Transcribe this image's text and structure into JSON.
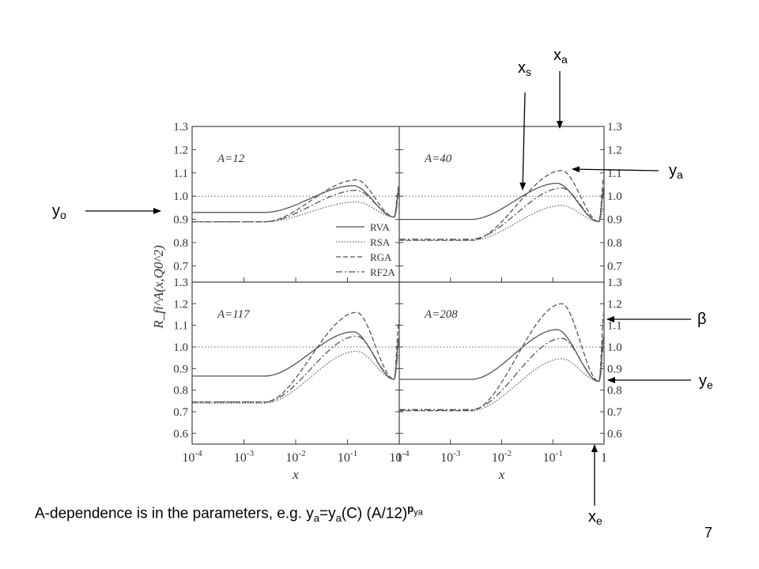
{
  "chart_data": {
    "type": "line",
    "xlabel": "x",
    "ylabel": "R_fi^A(x,Q0^2)",
    "x_log": true,
    "xlim": [
      0.0001,
      1
    ],
    "x_ticks": [
      "10-4",
      "10-3",
      "10-2",
      "10-1",
      "1"
    ],
    "y_ticks_top": [
      "0.7",
      "0.8",
      "0.9",
      "1.0",
      "1.1",
      "1.2",
      "1.3"
    ],
    "y_ticks_bottom": [
      "0.6",
      "0.7",
      "0.8",
      "0.9",
      "1.0",
      "1.1",
      "1.2",
      "1.3"
    ],
    "ylim_top": [
      0.63,
      1.3
    ],
    "ylim_bottom": [
      0.55,
      1.3
    ],
    "reference_line": 1.0,
    "legend": [
      "RVA",
      "RSA",
      "RGA",
      "RF2A"
    ],
    "legend_placement": "bottom-right of top-left panel",
    "panels": [
      {
        "label": "A=12",
        "row": 0,
        "col": 0,
        "series": [
          {
            "name": "RVA",
            "style": "solid",
            "y0": 0.93,
            "peak_x": 0.13,
            "peak_y": 1.045,
            "min_x": 0.8,
            "min_y": 0.91
          },
          {
            "name": "RSA",
            "style": "dotted",
            "y0": 0.89,
            "peak_x": 0.15,
            "peak_y": 0.975,
            "min_x": 0.8,
            "min_y": 0.91
          },
          {
            "name": "RGA",
            "style": "dashed",
            "y0": 0.89,
            "peak_x": 0.15,
            "peak_y": 1.07,
            "min_x": 0.8,
            "min_y": 0.91
          },
          {
            "name": "RF2A",
            "style": "dashdot",
            "y0": 0.89,
            "peak_x": 0.15,
            "peak_y": 1.025,
            "min_x": 0.8,
            "min_y": 0.91
          }
        ]
      },
      {
        "label": "A=40",
        "row": 0,
        "col": 1,
        "series": [
          {
            "name": "RVA",
            "style": "solid",
            "y0": 0.9,
            "peak_x": 0.12,
            "peak_y": 1.055,
            "min_x": 0.8,
            "min_y": 0.89
          },
          {
            "name": "RSA",
            "style": "dotted",
            "y0": 0.81,
            "peak_x": 0.15,
            "peak_y": 0.96,
            "min_x": 0.8,
            "min_y": 0.89
          },
          {
            "name": "RGA",
            "style": "dashed",
            "y0": 0.81,
            "peak_x": 0.15,
            "peak_y": 1.11,
            "min_x": 0.8,
            "min_y": 0.89
          },
          {
            "name": "RF2A",
            "style": "dashdot",
            "y0": 0.815,
            "peak_x": 0.15,
            "peak_y": 1.035,
            "min_x": 0.8,
            "min_y": 0.89
          }
        ]
      },
      {
        "label": "A=117",
        "row": 1,
        "col": 0,
        "series": [
          {
            "name": "RVA",
            "style": "solid",
            "y0": 0.865,
            "peak_x": 0.13,
            "peak_y": 1.07,
            "min_x": 0.8,
            "min_y": 0.85
          },
          {
            "name": "RSA",
            "style": "dotted",
            "y0": 0.74,
            "peak_x": 0.15,
            "peak_y": 0.98,
            "min_x": 0.8,
            "min_y": 0.85
          },
          {
            "name": "RGA",
            "style": "dashed",
            "y0": 0.745,
            "peak_x": 0.15,
            "peak_y": 1.16,
            "min_x": 0.8,
            "min_y": 0.85
          },
          {
            "name": "RF2A",
            "style": "dashdot",
            "y0": 0.745,
            "peak_x": 0.15,
            "peak_y": 1.05,
            "min_x": 0.8,
            "min_y": 0.85
          }
        ]
      },
      {
        "label": "A=208",
        "row": 1,
        "col": 1,
        "series": [
          {
            "name": "RVA",
            "style": "solid",
            "y0": 0.85,
            "peak_x": 0.12,
            "peak_y": 1.08,
            "min_x": 0.8,
            "min_y": 0.84
          },
          {
            "name": "RSA",
            "style": "dotted",
            "y0": 0.705,
            "peak_x": 0.15,
            "peak_y": 0.945,
            "min_x": 0.8,
            "min_y": 0.84
          },
          {
            "name": "RGA",
            "style": "dashed",
            "y0": 0.705,
            "peak_x": 0.15,
            "peak_y": 1.2,
            "min_x": 0.8,
            "min_y": 0.84
          },
          {
            "name": "RF2A",
            "style": "dashdot",
            "y0": 0.71,
            "peak_x": 0.15,
            "peak_y": 1.04,
            "min_x": 0.8,
            "min_y": 0.84
          }
        ]
      }
    ],
    "annotations": [
      "xa",
      "xs",
      "ya",
      "yo",
      "β",
      "ye",
      "xe"
    ]
  },
  "annotations": {
    "xa": {
      "main": "x",
      "sub": "a"
    },
    "xs": {
      "main": "x",
      "sub": "s"
    },
    "ya": {
      "main": "y",
      "sub": "a"
    },
    "yo": {
      "main": "y",
      "sub": "o"
    },
    "beta": {
      "main": "β"
    },
    "ye": {
      "main": "y",
      "sub": "e"
    },
    "xe": {
      "main": "x",
      "sub": "e"
    }
  },
  "caption": {
    "lead": "A-dependence is in the parameters,  e.g. y",
    "sub1": "a",
    "mid": "=y",
    "sub2": "a",
    "tail": "(C) (A/12)",
    "sup": "p",
    "sup_sub": "ya"
  },
  "page_number": "7"
}
